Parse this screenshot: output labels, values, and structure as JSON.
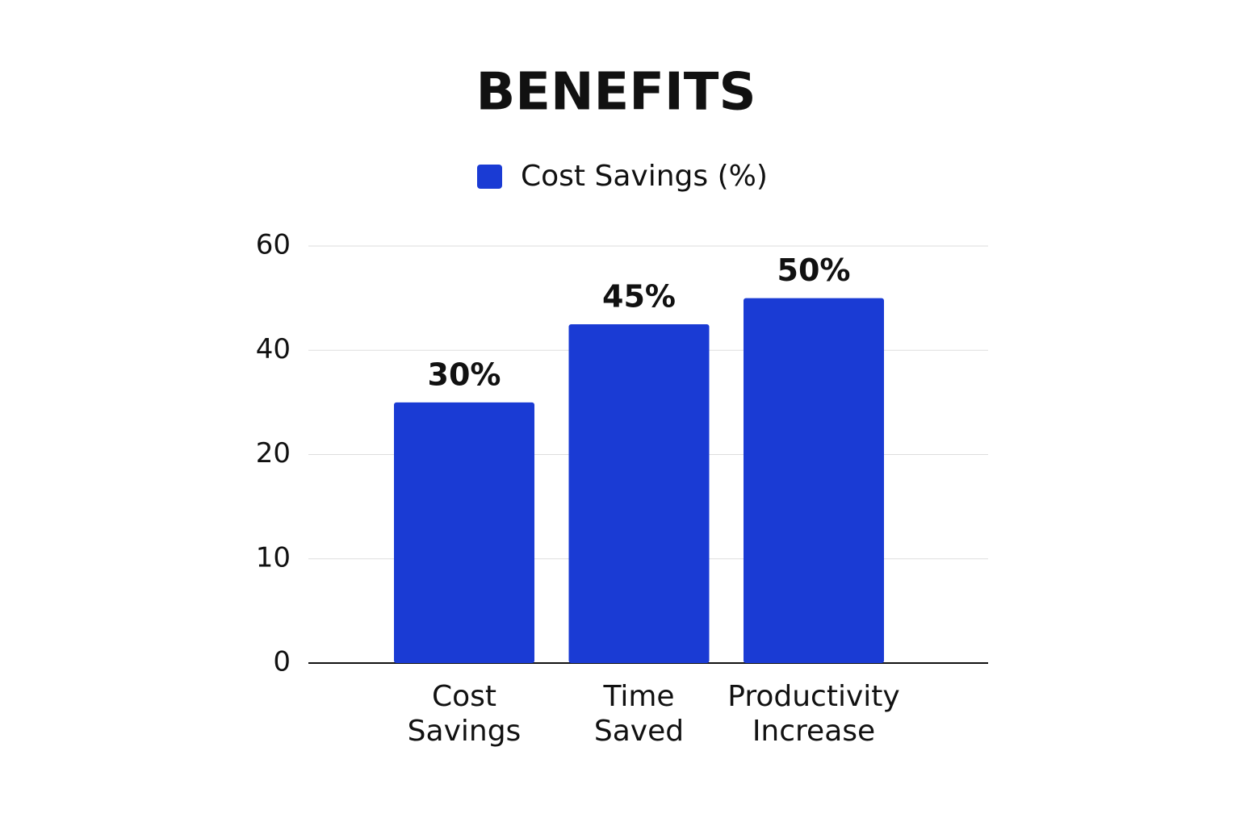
{
  "chart_data": {
    "type": "bar",
    "title": "BENEFITS",
    "categories": [
      "Cost Savings",
      "Time Saved",
      "Productivity Increase"
    ],
    "series": [
      {
        "name": "Cost Savings (%)",
        "color": "#1a3bd4",
        "values": [
          30,
          45,
          50
        ],
        "value_labels": [
          "30%",
          "45%",
          "50%"
        ]
      }
    ],
    "ylim": [
      0,
      60
    ],
    "yticks": [
      0,
      10,
      20,
      40,
      60
    ],
    "grid": true,
    "legend": "top"
  }
}
